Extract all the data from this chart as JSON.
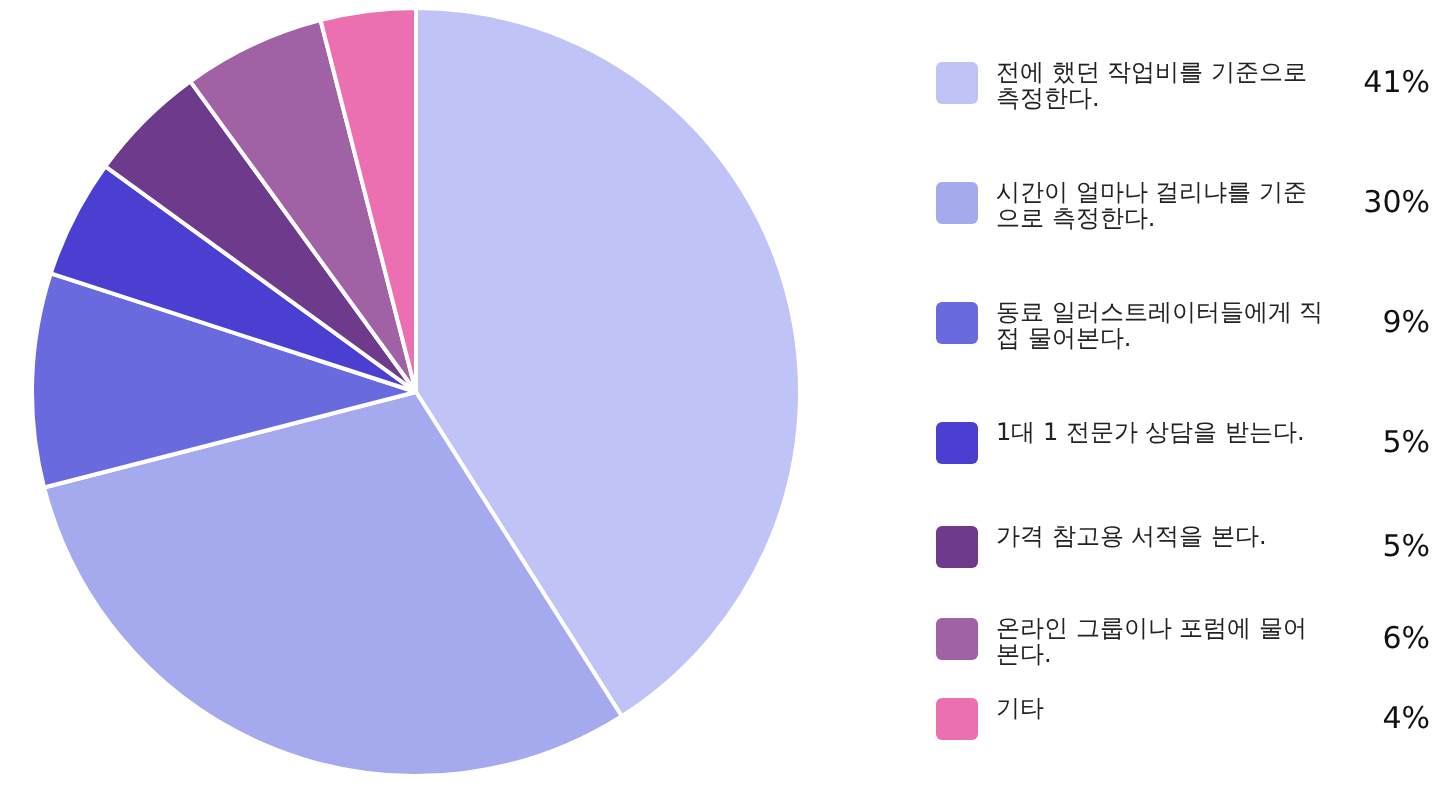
{
  "chart_data": {
    "type": "pie",
    "categories": [
      "전에 했던 작업비를 기준으로 측정한다.",
      "시간이 얼마나 걸리냐를 기준으로 측정한다.",
      "동료 일러스트레이터들에게 직접 물어본다.",
      "1대 1 전문가 상담을 받는다.",
      "가격 참고용 서적을 본다.",
      "온라인 그룹이나 포럼에 물어본다.",
      "기타"
    ],
    "values": [
      41,
      30,
      9,
      5,
      5,
      6,
      4
    ],
    "colors": [
      "#bfc3f5",
      "#a5a9ee",
      "#6a6adf",
      "#4a3fd0",
      "#6e3a8c",
      "#a061a5",
      "#ec6fb1"
    ],
    "value_labels": [
      "41%",
      "30%",
      "9%",
      "5%",
      "5%",
      "6%",
      "4%"
    ],
    "legend": "right"
  }
}
